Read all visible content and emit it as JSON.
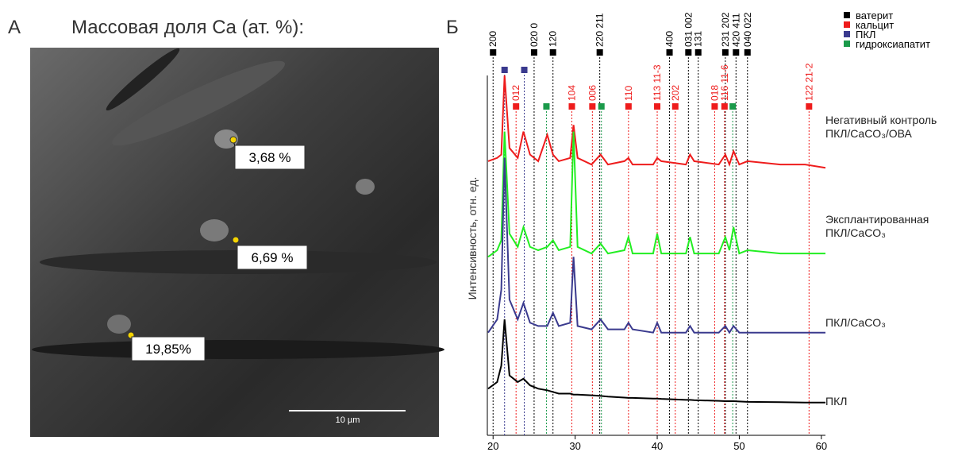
{
  "panel_a": {
    "label": "А",
    "title": "Массовая доля Ca (ат. %):",
    "annotations": [
      "3,68 %",
      "6,69 %",
      "19,85%"
    ],
    "scale_bar": "10 µm"
  },
  "chart_data": {
    "type": "line",
    "label": "Б",
    "y_label": "Интенсивность, отн. ед.",
    "xlim": [
      19.3,
      60.5
    ],
    "ylim": [
      0,
      100
    ],
    "xticks": [
      20,
      30,
      40,
      50,
      60
    ],
    "x": [
      19.4,
      20.5,
      21,
      21.4,
      22,
      23,
      23.7,
      24.5,
      25.5,
      26.6,
      27.3,
      28,
      29.4,
      29.8,
      30.3,
      32,
      33.1,
      34,
      36,
      36.5,
      37,
      39.5,
      40,
      40.5,
      43.5,
      44,
      44.5,
      47.5,
      48.3,
      48.8,
      49.3,
      50,
      51,
      55,
      58,
      60.5
    ],
    "series": [
      {
        "name": "Негативный контроль ПКЛ/CaCO₃/ОВА",
        "color": "#ee1c1c",
        "values": [
          74,
          75,
          76,
          100,
          78,
          75,
          83,
          76,
          74,
          82,
          76,
          74,
          75,
          85,
          75,
          73,
          76,
          73,
          74,
          75,
          73,
          73,
          75,
          74,
          73,
          76,
          74,
          73,
          76,
          73,
          77,
          73,
          74,
          73,
          73,
          72
        ]
      },
      {
        "name": "Эксплантированная ПКЛ/CaCO₃",
        "color": "#22ee22",
        "values": [
          45,
          47,
          50,
          83,
          52,
          48,
          54,
          48,
          47,
          48,
          50,
          47,
          48,
          83,
          48,
          46,
          49,
          46,
          47,
          51,
          46,
          46,
          52,
          46,
          46,
          51,
          46,
          46,
          51,
          47,
          54,
          46,
          47,
          46,
          46,
          46
        ]
      },
      {
        "name": "ПКЛ/CaCO₃",
        "color": "#3a3a8e",
        "values": [
          22,
          26,
          35,
          75,
          32,
          26,
          31,
          25,
          24,
          24,
          28,
          24,
          25,
          45,
          24,
          23,
          26,
          23,
          23,
          25,
          23,
          22,
          25,
          22,
          22,
          24,
          22,
          22,
          24,
          22,
          24,
          22,
          22,
          22,
          22,
          22
        ]
      },
      {
        "name": "ПКЛ",
        "color": "#000000",
        "values": [
          5,
          7,
          12,
          26,
          9,
          7,
          8,
          6,
          5,
          4.5,
          4,
          3.5,
          3.5,
          3.2,
          3.2,
          3,
          2.8,
          2.6,
          2.3,
          2.2,
          2.2,
          2,
          2,
          1.9,
          1.6,
          1.6,
          1.5,
          1.3,
          1.2,
          1.2,
          1.2,
          1.1,
          1,
          0.9,
          0.8,
          0.8
        ]
      }
    ],
    "phases": [
      {
        "name": "ватерит",
        "color": "#000000",
        "peaks": [
          {
            "x": 20,
            "label": "200"
          },
          {
            "x": 25,
            "label": "020 0"
          },
          {
            "x": 27.3,
            "label": "120"
          },
          {
            "x": 33,
            "label": "220 211"
          },
          {
            "x": 41.5,
            "label": "400"
          },
          {
            "x": 43.8,
            "label": "031 002"
          },
          {
            "x": 45,
            "label": "131"
          },
          {
            "x": 48.3,
            "label": "231 202"
          },
          {
            "x": 49.6,
            "label": "420 411"
          },
          {
            "x": 51,
            "label": "040 022"
          }
        ]
      },
      {
        "name": "кальцит",
        "color": "#ee1c1c",
        "peaks": [
          {
            "x": 22.8,
            "label": "012"
          },
          {
            "x": 29.6,
            "label": "104"
          },
          {
            "x": 32.1,
            "label": "006"
          },
          {
            "x": 36.5,
            "label": "110"
          },
          {
            "x": 40,
            "label": "113 11-3"
          },
          {
            "x": 42.2,
            "label": "202"
          },
          {
            "x": 47,
            "label": "018"
          },
          {
            "x": 48.2,
            "label": "116 11-6"
          },
          {
            "x": 58.5,
            "label": "122 21-2"
          }
        ]
      },
      {
        "name": "ПКЛ",
        "color": "#3a3a8e",
        "peaks": [
          {
            "x": 21.4
          },
          {
            "x": 23.8
          }
        ]
      },
      {
        "name": "гидроксиапатит",
        "color": "#1a9a4a",
        "peaks": [
          {
            "x": 26.5
          },
          {
            "x": 33.2
          },
          {
            "x": 49.2
          }
        ]
      }
    ]
  }
}
